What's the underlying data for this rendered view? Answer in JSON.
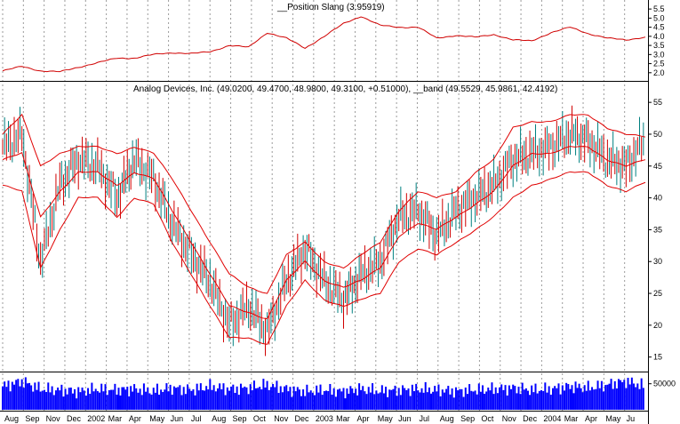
{
  "colors": {
    "background": "#ffffff",
    "price_bar": "#008080",
    "price_bar_down": "#d00000",
    "band_line": "#e00000",
    "indicator_line": "#d00000",
    "volume": "#0000ff",
    "grid": "#9a9a9a",
    "axis": "#000000"
  },
  "chart_data": [
    {
      "type": "line",
      "title": "__Position Slang (3.95919)",
      "ylim": [
        1.6,
        5.8
      ],
      "yticks": [
        "2.0",
        "2.5",
        "3.0",
        "3.5",
        "4.0",
        "4.5",
        "5.0",
        "5.5"
      ],
      "series": [
        {
          "name": "__Position Slang",
          "x": [
            "2001-08-01",
            "2001-09-01",
            "2001-10-01",
            "2001-11-01",
            "2001-12-01",
            "2002-01-01",
            "2002-02-01",
            "2002-03-01",
            "2002-04-01",
            "2002-05-01",
            "2002-06-01",
            "2002-07-01",
            "2002-08-01",
            "2002-09-01",
            "2002-10-01",
            "2002-11-01",
            "2002-12-01",
            "2003-01-01",
            "2003-02-01",
            "2003-03-01",
            "2003-04-01",
            "2003-05-01",
            "2003-06-01",
            "2003-07-01",
            "2003-08-01",
            "2003-09-01",
            "2003-10-01",
            "2003-11-01",
            "2003-12-01",
            "2004-01-01",
            "2004-02-01",
            "2004-03-01",
            "2004-04-01",
            "2004-05-01",
            "2004-06-01"
          ],
          "values": [
            2.1,
            2.35,
            2.1,
            2.05,
            2.3,
            2.55,
            2.8,
            2.8,
            3.0,
            3.1,
            3.05,
            3.15,
            3.5,
            3.4,
            4.2,
            3.9,
            3.35,
            4.0,
            4.7,
            5.1,
            4.6,
            4.5,
            4.5,
            3.9,
            4.05,
            3.95,
            4.1,
            3.8,
            3.75,
            4.2,
            4.5,
            4.15,
            3.9,
            3.8,
            3.96
          ]
        }
      ]
    },
    {
      "type": "line",
      "title": "Analog Devices, Inc. (49.0200, 49.4700, 48.9800, 49.3100, +0.51000), __band (49.5529, 45.9861, 42.4192)",
      "ylim": [
        13,
        56
      ],
      "yticks": [
        "15",
        "20",
        "25",
        "30",
        "35",
        "40",
        "45",
        "50",
        "55"
      ],
      "x_tick_labels": [
        "Aug",
        "Sep",
        "Nov",
        "Dec",
        "2002",
        "Mar",
        "Apr",
        "May",
        "Jun",
        "Jul",
        "Aug",
        "Sep",
        "Oct",
        "Nov",
        "Dec",
        "2003",
        "Mar",
        "Apr",
        "May",
        "Jun",
        "Jul",
        "Aug",
        "Sep",
        "Oct",
        "Nov",
        "Dec",
        "2004",
        "Mar",
        "Apr",
        "May",
        "Ju"
      ],
      "series": [
        {
          "name": "Analog Devices, Inc.",
          "x": [
            "2001-08-01",
            "2001-09-01",
            "2001-10-01",
            "2001-11-01",
            "2001-12-01",
            "2002-01-01",
            "2002-02-01",
            "2002-03-01",
            "2002-04-01",
            "2002-05-01",
            "2002-06-01",
            "2002-07-01",
            "2002-08-01",
            "2002-09-01",
            "2002-10-01",
            "2002-11-01",
            "2002-12-01",
            "2003-01-01",
            "2003-02-01",
            "2003-03-01",
            "2003-04-01",
            "2003-05-01",
            "2003-06-01",
            "2003-07-01",
            "2003-08-01",
            "2003-09-01",
            "2003-10-01",
            "2003-11-01",
            "2003-12-01",
            "2004-01-01",
            "2004-02-01",
            "2004-03-01",
            "2004-04-01",
            "2004-05-01",
            "2004-06-01"
          ],
          "values": [
            48,
            50,
            30,
            42,
            46,
            45,
            40,
            46,
            43,
            36,
            31,
            27,
            20,
            23,
            19,
            27,
            32,
            27,
            24,
            28,
            30,
            37,
            38,
            34,
            38,
            40,
            42,
            46,
            47,
            48,
            50,
            49,
            46,
            45,
            49.31
          ]
        },
        {
          "name": "__band upper",
          "x": [
            "2001-08-01",
            "2001-09-01",
            "2001-10-01",
            "2001-11-01",
            "2001-12-01",
            "2002-01-01",
            "2002-02-01",
            "2002-03-01",
            "2002-04-01",
            "2002-05-01",
            "2002-06-01",
            "2002-07-01",
            "2002-08-01",
            "2002-09-01",
            "2002-10-01",
            "2002-11-01",
            "2002-12-01",
            "2003-01-01",
            "2003-02-01",
            "2003-03-01",
            "2003-04-01",
            "2003-05-01",
            "2003-06-01",
            "2003-07-01",
            "2003-08-01",
            "2003-09-01",
            "2003-10-01",
            "2003-11-01",
            "2003-12-01",
            "2004-01-01",
            "2004-02-01",
            "2004-03-01",
            "2004-04-01",
            "2004-05-01",
            "2004-06-01"
          ],
          "values": [
            50,
            53,
            45,
            47,
            48,
            48,
            47,
            48,
            47,
            43,
            38,
            33,
            28,
            26,
            25,
            31,
            33,
            30,
            29,
            31,
            33,
            38,
            41,
            40,
            41,
            44,
            46,
            51,
            52,
            52,
            53,
            53,
            51,
            50,
            49.55
          ]
        },
        {
          "name": "__band middle",
          "x": [
            "2001-08-01",
            "2001-09-01",
            "2001-10-01",
            "2001-11-01",
            "2001-12-01",
            "2002-01-01",
            "2002-02-01",
            "2002-03-01",
            "2002-04-01",
            "2002-05-01",
            "2002-06-01",
            "2002-07-01",
            "2002-08-01",
            "2002-09-01",
            "2002-10-01",
            "2002-11-01",
            "2002-12-01",
            "2003-01-01",
            "2003-02-01",
            "2003-03-01",
            "2003-04-01",
            "2003-05-01",
            "2003-06-01",
            "2003-07-01",
            "2003-08-01",
            "2003-09-01",
            "2003-10-01",
            "2003-11-01",
            "2003-12-01",
            "2004-01-01",
            "2004-02-01",
            "2004-03-01",
            "2004-04-01",
            "2004-05-01",
            "2004-06-01"
          ],
          "values": [
            46,
            47,
            37,
            41,
            44,
            44,
            42,
            44,
            43,
            38,
            33,
            28,
            23,
            22,
            21,
            27,
            30,
            27,
            26,
            27,
            29,
            34,
            36,
            35,
            37,
            39,
            41,
            45,
            47,
            47,
            48,
            48,
            46,
            45,
            45.99
          ]
        },
        {
          "name": "__band lower",
          "x": [
            "2001-08-01",
            "2001-09-01",
            "2001-10-01",
            "2001-11-01",
            "2001-12-01",
            "2002-01-01",
            "2002-02-01",
            "2002-03-01",
            "2002-04-01",
            "2002-05-01",
            "2002-06-01",
            "2002-07-01",
            "2002-08-01",
            "2002-09-01",
            "2002-10-01",
            "2002-11-01",
            "2002-12-01",
            "2003-01-01",
            "2003-02-01",
            "2003-03-01",
            "2003-04-01",
            "2003-05-01",
            "2003-06-01",
            "2003-07-01",
            "2003-08-01",
            "2003-09-01",
            "2003-10-01",
            "2003-11-01",
            "2003-12-01",
            "2004-01-01",
            "2004-02-01",
            "2004-03-01",
            "2004-04-01",
            "2004-05-01",
            "2004-06-01"
          ],
          "values": [
            42,
            41,
            29,
            35,
            40,
            40,
            37,
            40,
            39,
            33,
            28,
            23,
            18,
            18,
            17,
            23,
            27,
            24,
            23,
            24,
            25,
            30,
            32,
            31,
            33,
            35,
            37,
            40,
            42,
            43,
            44,
            44,
            42,
            41,
            42.42
          ]
        }
      ]
    },
    {
      "type": "bar",
      "title": "",
      "ylim": [
        0,
        70000
      ],
      "yticks": [
        "50000"
      ],
      "x": [
        "2001-08-01",
        "2001-09-01",
        "2001-10-01",
        "2001-11-01",
        "2001-12-01",
        "2002-01-01",
        "2002-02-01",
        "2002-03-01",
        "2002-04-01",
        "2002-05-01",
        "2002-06-01",
        "2002-07-01",
        "2002-08-01",
        "2002-09-01",
        "2002-10-01",
        "2002-11-01",
        "2002-12-01",
        "2003-01-01",
        "2003-02-01",
        "2003-03-01",
        "2003-04-01",
        "2003-05-01",
        "2003-06-01",
        "2003-07-01",
        "2003-08-01",
        "2003-09-01",
        "2003-10-01",
        "2003-11-01",
        "2003-12-01",
        "2004-01-01",
        "2004-02-01",
        "2004-03-01",
        "2004-04-01",
        "2004-05-01",
        "2004-06-01"
      ],
      "values": [
        45000,
        55000,
        40000,
        38000,
        35000,
        40000,
        38000,
        40000,
        36000,
        42000,
        38000,
        45000,
        40000,
        42000,
        48000,
        40000,
        35000,
        38000,
        35000,
        40000,
        36000,
        38000,
        40000,
        38000,
        36000,
        38000,
        40000,
        42000,
        38000,
        40000,
        45000,
        42000,
        48000,
        55000,
        45000
      ]
    }
  ]
}
